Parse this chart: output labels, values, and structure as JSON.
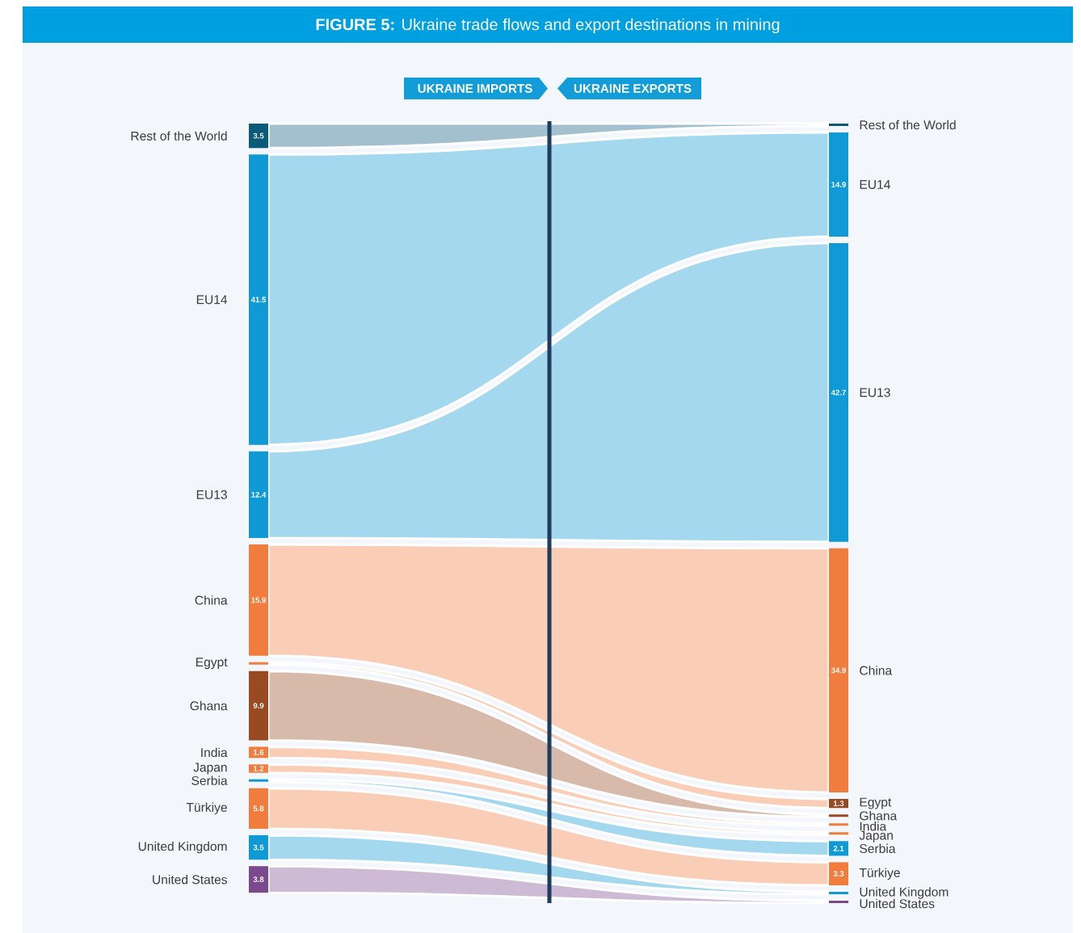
{
  "chart_data": {
    "type": "other",
    "title": "**FIGURE 5:** Ukraine trade flows and export destinations in mining",
    "categories": [
      "Rest of the World",
      "EU14",
      "EU13",
      "China",
      "Egypt",
      "Ghana",
      "India",
      "Japan",
      "Serbia",
      "Türkiye",
      "United Kingdom",
      "United States"
    ],
    "series": [
      {
        "name": "UKRAINE IMPORTS",
        "colors": [
          "#0b5a7a",
          "#0f9ad6",
          "#0f9ad6",
          "#f07c3e",
          "#f07c3e",
          "#9a4a22",
          "#f07c3e",
          "#f07c3e",
          "#0f9ad6",
          "#f07c3e",
          "#0f9ad6",
          "#7b4a8e"
        ],
        "values": [
          3.5,
          41.5,
          12.4,
          15.9,
          null,
          9.9,
          1.6,
          1.2,
          null,
          5.8,
          3.5,
          3.8
        ]
      },
      {
        "name": "UKRAINE EXPORTS",
        "colors": [
          "#0b5a7a",
          "#0f9ad6",
          "#0f9ad6",
          "#f07c3e",
          "#9a4a22",
          "#9a4a22",
          "#f07c3e",
          "#f07c3e",
          "#0f9ad6",
          "#f07c3e",
          "#0f9ad6",
          "#7b4a8e"
        ],
        "values": [
          null,
          14.9,
          42.7,
          34.9,
          1.3,
          null,
          null,
          null,
          2.1,
          3.3,
          null,
          null
        ]
      }
    ],
    "data_labels": true
  }
}
